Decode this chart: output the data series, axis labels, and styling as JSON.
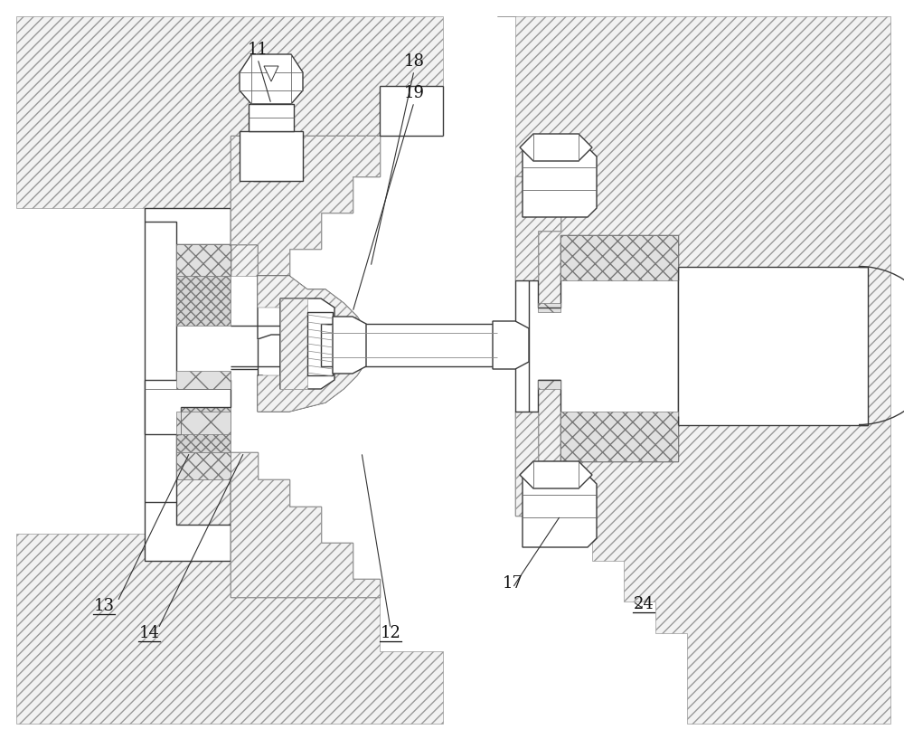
{
  "fig_width": 10.0,
  "fig_height": 8.17,
  "dpi": 100,
  "bg_color": "#ffffff",
  "lc": "#3a3a3a",
  "lw": 1.0,
  "hatch_lc": "#999999",
  "hatch_fc": "#f2f2f2",
  "seal_fc": "#e0e0e0",
  "seal_ec": "#777777"
}
